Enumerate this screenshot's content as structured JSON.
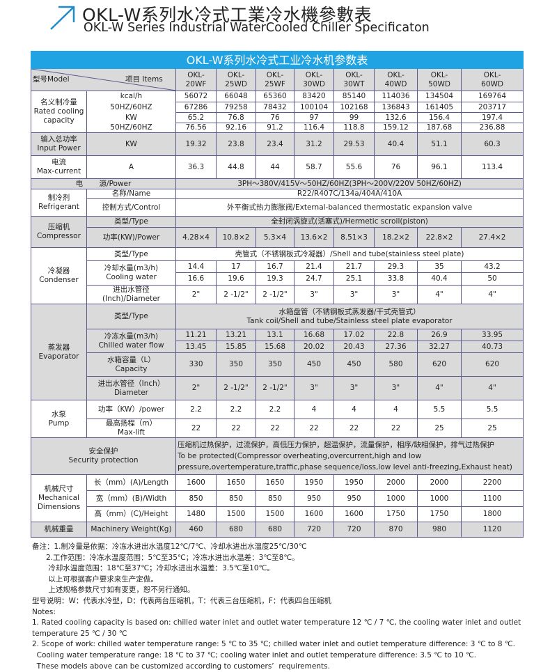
{
  "header": {
    "title_cn": "OKL-W系列水冷式工業冷水機參數表",
    "title_en": "OKL-W Series Industrial WaterCooled Chiller Specificaton",
    "icon": "arrow-up-right-icon",
    "accent": "#1e8ccc"
  },
  "table": {
    "title": "OKL-W系列水冷式工业冷水机参数表",
    "model_label": "型号Model",
    "items_label": "项目 Items",
    "models": [
      [
        "OKL-",
        "20WF"
      ],
      [
        "OKL-",
        "25WD"
      ],
      [
        "OKL-",
        "25WF"
      ],
      [
        "OKL-",
        "30WD"
      ],
      [
        "OKL-",
        "30WT"
      ],
      [
        "OKL-",
        "40WD"
      ],
      [
        "OKL-",
        "50WD"
      ],
      [
        "OKL-",
        "60WD"
      ]
    ],
    "cooling": {
      "cn": "名义制冷量",
      "en1": "Rated cooling",
      "en2": "capacity",
      "units": [
        "kcal/h",
        "50HZ/60HZ",
        "KW",
        "50HZ/60HZ"
      ],
      "rows": [
        [
          "56072",
          "66048",
          "65360",
          "83420",
          "85140",
          "114036",
          "134504",
          "169764"
        ],
        [
          "67286",
          "79258",
          "78432",
          "100104",
          "102168",
          "136843",
          "161405",
          "203717"
        ],
        [
          "65.2",
          "76.8",
          "76",
          "97",
          "99",
          "132.6",
          "156.4",
          "197.4"
        ],
        [
          "76.56",
          "92.16",
          "91.2",
          "116.4",
          "118.8",
          "159.12",
          "187.68",
          "236.88"
        ]
      ]
    },
    "input_power": {
      "cn": "输入总功率",
      "en": "Input Power",
      "unit": "KW",
      "values": [
        "19.32",
        "23.8",
        "23.4",
        "31.2",
        "29.53",
        "40.4",
        "51.1",
        "60.3"
      ]
    },
    "current": {
      "cn": "电流",
      "en": "Max-current",
      "unit": "A",
      "values": [
        "36.3",
        "44.8",
        "44",
        "58.7",
        "55.6",
        "76",
        "96.1",
        "113.4"
      ]
    },
    "power": {
      "label_a": "电",
      "label_b": "源/Power",
      "value": "3PH～380V/415V～50HZ/60HZ(3PH～200V/220V   50HZ/60HZ)"
    },
    "refrigerant": {
      "cn": "制冷剂",
      "en": "Refrigerant",
      "name_label": "名称/Name",
      "name": "R22/R407C/134a/404A/410A",
      "control_label": "控制方式/Control",
      "control": "外平衡式热力膨胀阀/External-balanced thermostatic expansion valve"
    },
    "compressor": {
      "cn": "压缩机",
      "en": "Compressor",
      "type_label": "类型/Type",
      "type": "全封闭涡旋式(活塞式)/Hermetic scroll(piston)",
      "power_label": "功率(KW)/Power",
      "power": [
        "4.28×4",
        "10.8×2",
        "5.3×4",
        "13.6×2",
        "8.51×3",
        "18.2×2",
        "22.8×2",
        "27.4×2"
      ]
    },
    "condenser": {
      "cn": "冷凝器",
      "en": "Condenser",
      "type_label": "类型/Type",
      "type": "壳管式（不锈钢板式冷凝器）/Shell and tube(stainless steel plate)",
      "water_label_cn": "冷却水量(m3/h)",
      "water_label_en": "Cooling water",
      "water": [
        [
          "14.4",
          "17",
          "16.7",
          "21.4",
          "21.7",
          "29.3",
          "35",
          "43.2"
        ],
        [
          "16.6",
          "19.6",
          "19.3",
          "24.7",
          "25.1",
          "33.8",
          "40.4",
          "50"
        ]
      ],
      "dia_label_cn": "进出水管径",
      "dia_label_en": "(Inch)/Diameter",
      "dia": [
        "2\"",
        "2 -1/2\"",
        "2 -1/2\"",
        "3\"",
        "3\"",
        "3\"",
        "4\"",
        "4\""
      ]
    },
    "evaporator": {
      "cn": "蒸发器",
      "en": "Evaporator",
      "type_label": "类型/Type",
      "type_cn": "水箱盘管（不锈钢板式蒸发器/干式壳管式）",
      "type_en": "Tank coil/Shell and tube/Stainless steel plate evaporator",
      "flow_label_cn": "冷冻水量(m3/h)",
      "flow_label_en": "Chilled water flow",
      "flow": [
        [
          "11.21",
          "13.21",
          "13.1",
          "16.68",
          "17.02",
          "22.8",
          "26.9",
          "33.95"
        ],
        [
          "13.45",
          "15.85",
          "15.68",
          "20.02",
          "20.43",
          "27.36",
          "32.27",
          "40.73"
        ]
      ],
      "cap_label_cn": "水箱容量（L）",
      "cap_label_en": "Capacity",
      "cap": [
        "330",
        "350",
        "350",
        "450",
        "450",
        "580",
        "620",
        "620"
      ],
      "dia_label_cn": "进出水管径（Inch）",
      "dia_label_en": "Diameter",
      "dia": [
        "2\"",
        "2 -1/2\"",
        "2 -1/2\"",
        "3\"",
        "3\"",
        "3\"",
        "4\"",
        "4\""
      ]
    },
    "pump": {
      "cn": "水泵",
      "en": "Pump",
      "power_label": "功率（KW）/power",
      "power": [
        "2.2",
        "2.2",
        "2.2",
        "4",
        "4",
        "4",
        "5.5",
        "5.5"
      ],
      "lift_label_cn": "最高扬程（m）",
      "lift_label_en": "Max-lift",
      "lift": [
        "22",
        "22",
        "22",
        "22",
        "22",
        "22",
        "25",
        "25"
      ]
    },
    "security": {
      "cn": "安全保护",
      "en": "Security protection",
      "lines": [
        "压缩机过热保护，过流保护，高低压力保护，超温保护，流量保护，相序/缺相保护，排气过热保护",
        "To be protected(Compressor overheating,overcurrent,high and low",
        "pressure,overtemperature,traffic,phase sequence/loss,low level anti-freezing,Exhaust heat)"
      ]
    },
    "dimensions": {
      "cn": "机械尺寸",
      "en1": "Mechanical",
      "en2": "Dimensions",
      "length_label": "长（mm）(A)/Length",
      "length": [
        "1600",
        "1650",
        "1650",
        "1950",
        "1950",
        "2000",
        "2000",
        "2200"
      ],
      "width_label": "宽（mm）(B)/Width",
      "width": [
        "850",
        "850",
        "850",
        "950",
        "950",
        "1000",
        "1000",
        "1100"
      ],
      "height_label": "高（mm）(C)/Height",
      "height": [
        "1480",
        "1500",
        "1500",
        "1600",
        "1600",
        "1750",
        "1750",
        "1800"
      ]
    },
    "weight": {
      "cn": "机械重量",
      "en": "Machinery Weight(Kg)",
      "values": [
        "460",
        "680",
        "680",
        "720",
        "720",
        "870",
        "980",
        "1120"
      ]
    }
  },
  "notes": [
    "备注：1.制冷量是依据：冷冻水进出水温度12℃/7℃、冷却水进出水温度25℃/30℃",
    "      2.工作范围：冷冻水温度范围：5℃至35℃；冷冻水进出水温差：3℃至8℃。",
    "       冷却水温度范围：18℃至37℃；冷却水进出水温差：3.5℃至10℃。",
    "       以上可根据客户要求来生产定做。",
    "       上述规格参数尺寸如有变更，恕不另行通知。",
    "型号说明：W：代表水冷型，D：代表两台压缩机，T：代表三台压缩机，F：代表四台压缩机",
    "Notes:",
    "1. Rated cooling capacity is based on: chilled water inlet and outlet water temperature 12 ℃ / 7 ℃, the cooling water inlet and outlet",
    "temperature 25 ℃ / 30 ℃",
    "2. Scope of work: chilled water temperature range: 5 ℃ to 35 ℃; chilled water inlet and outlet temperature difference: 3 ℃ to 8 ℃.",
    "  Cooling water temperature range: 18 ℃ to 37 ℃; cooling water inlet and outlet temperature difference: 3.5 ℃ to 10 ℃.",
    "  These models above can be customized according to customers’  requirements."
  ]
}
